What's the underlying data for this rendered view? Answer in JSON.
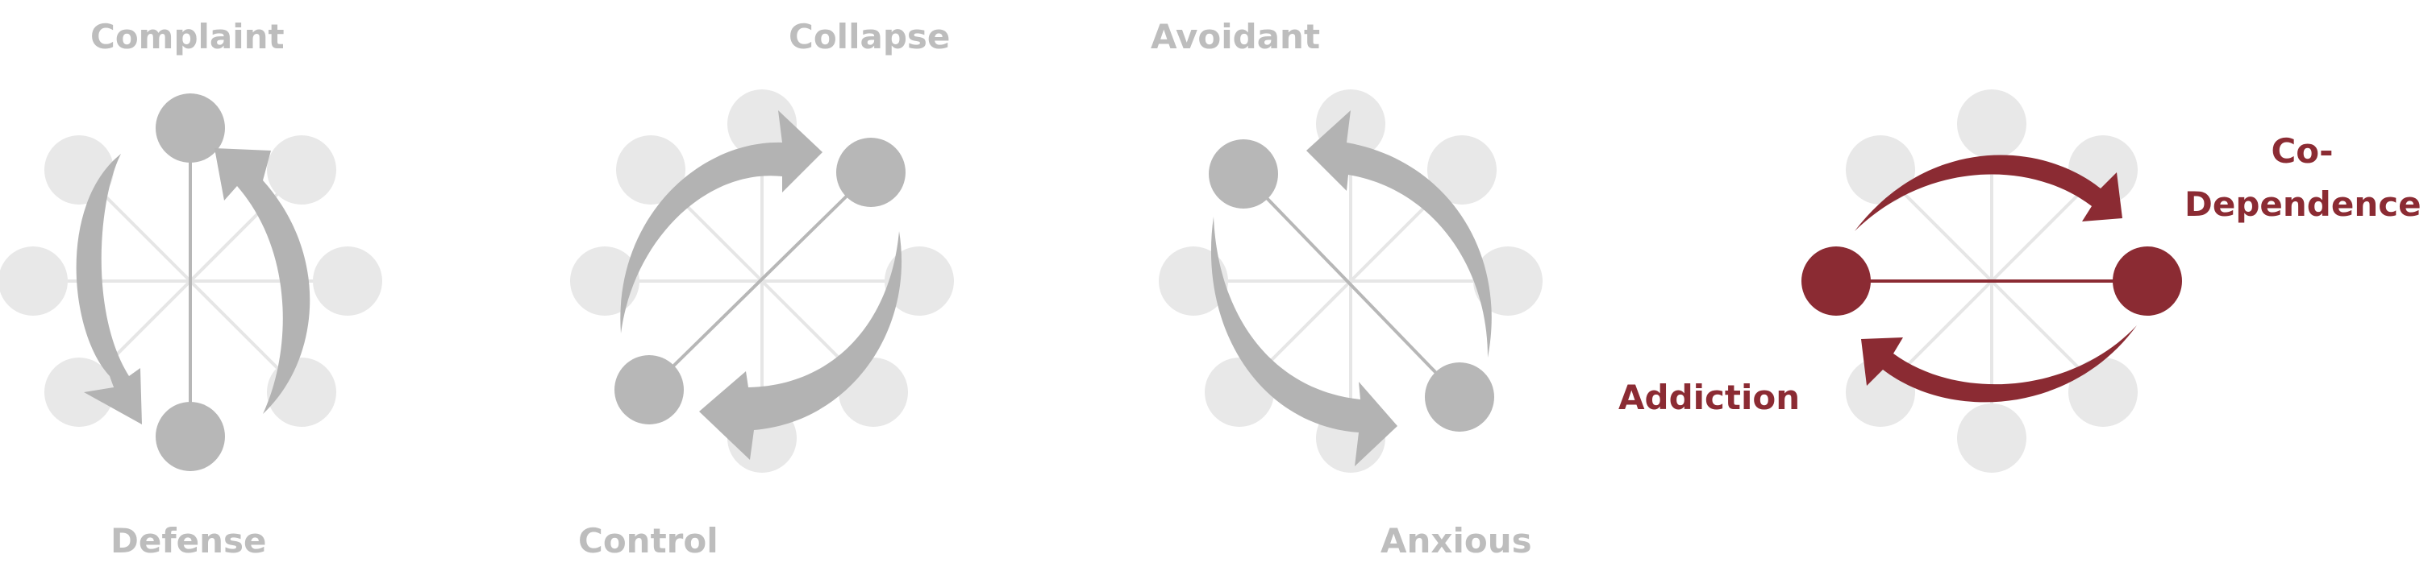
{
  "colors": {
    "node_faint": "#e8e8e8",
    "spoke_faint": "#e6e6e6",
    "active_gray": "#b7b7b7",
    "arrow_gray": "#b3b3b3",
    "active_red": "#8b2b33",
    "label_gray": "#bdbdbd",
    "spoke_red": "#8b2b33"
  },
  "diagrams": [
    {
      "id": "complaint-defense",
      "labels": [
        "Complaint",
        "Defense"
      ],
      "active_axis": "vertical",
      "active_color": "gray"
    },
    {
      "id": "collapse-control",
      "labels": [
        "Collapse",
        "Control"
      ],
      "active_axis": "diagonal-rising",
      "active_color": "gray"
    },
    {
      "id": "avoidant-anxious",
      "labels": [
        "Avoidant",
        "Anxious"
      ],
      "active_axis": "diagonal-falling",
      "active_color": "gray"
    },
    {
      "id": "codependence-addiction",
      "labels": [
        "Co-\nDependence",
        "Addiction"
      ],
      "active_axis": "horizontal",
      "active_color": "red"
    }
  ],
  "labels": {
    "complaint": "Complaint",
    "defense": "Defense",
    "collapse": "Collapse",
    "control": "Control",
    "avoidant": "Avoidant",
    "anxious": "Anxious",
    "co": "Co-",
    "dependence": "Dependence",
    "addiction": "Addiction"
  }
}
